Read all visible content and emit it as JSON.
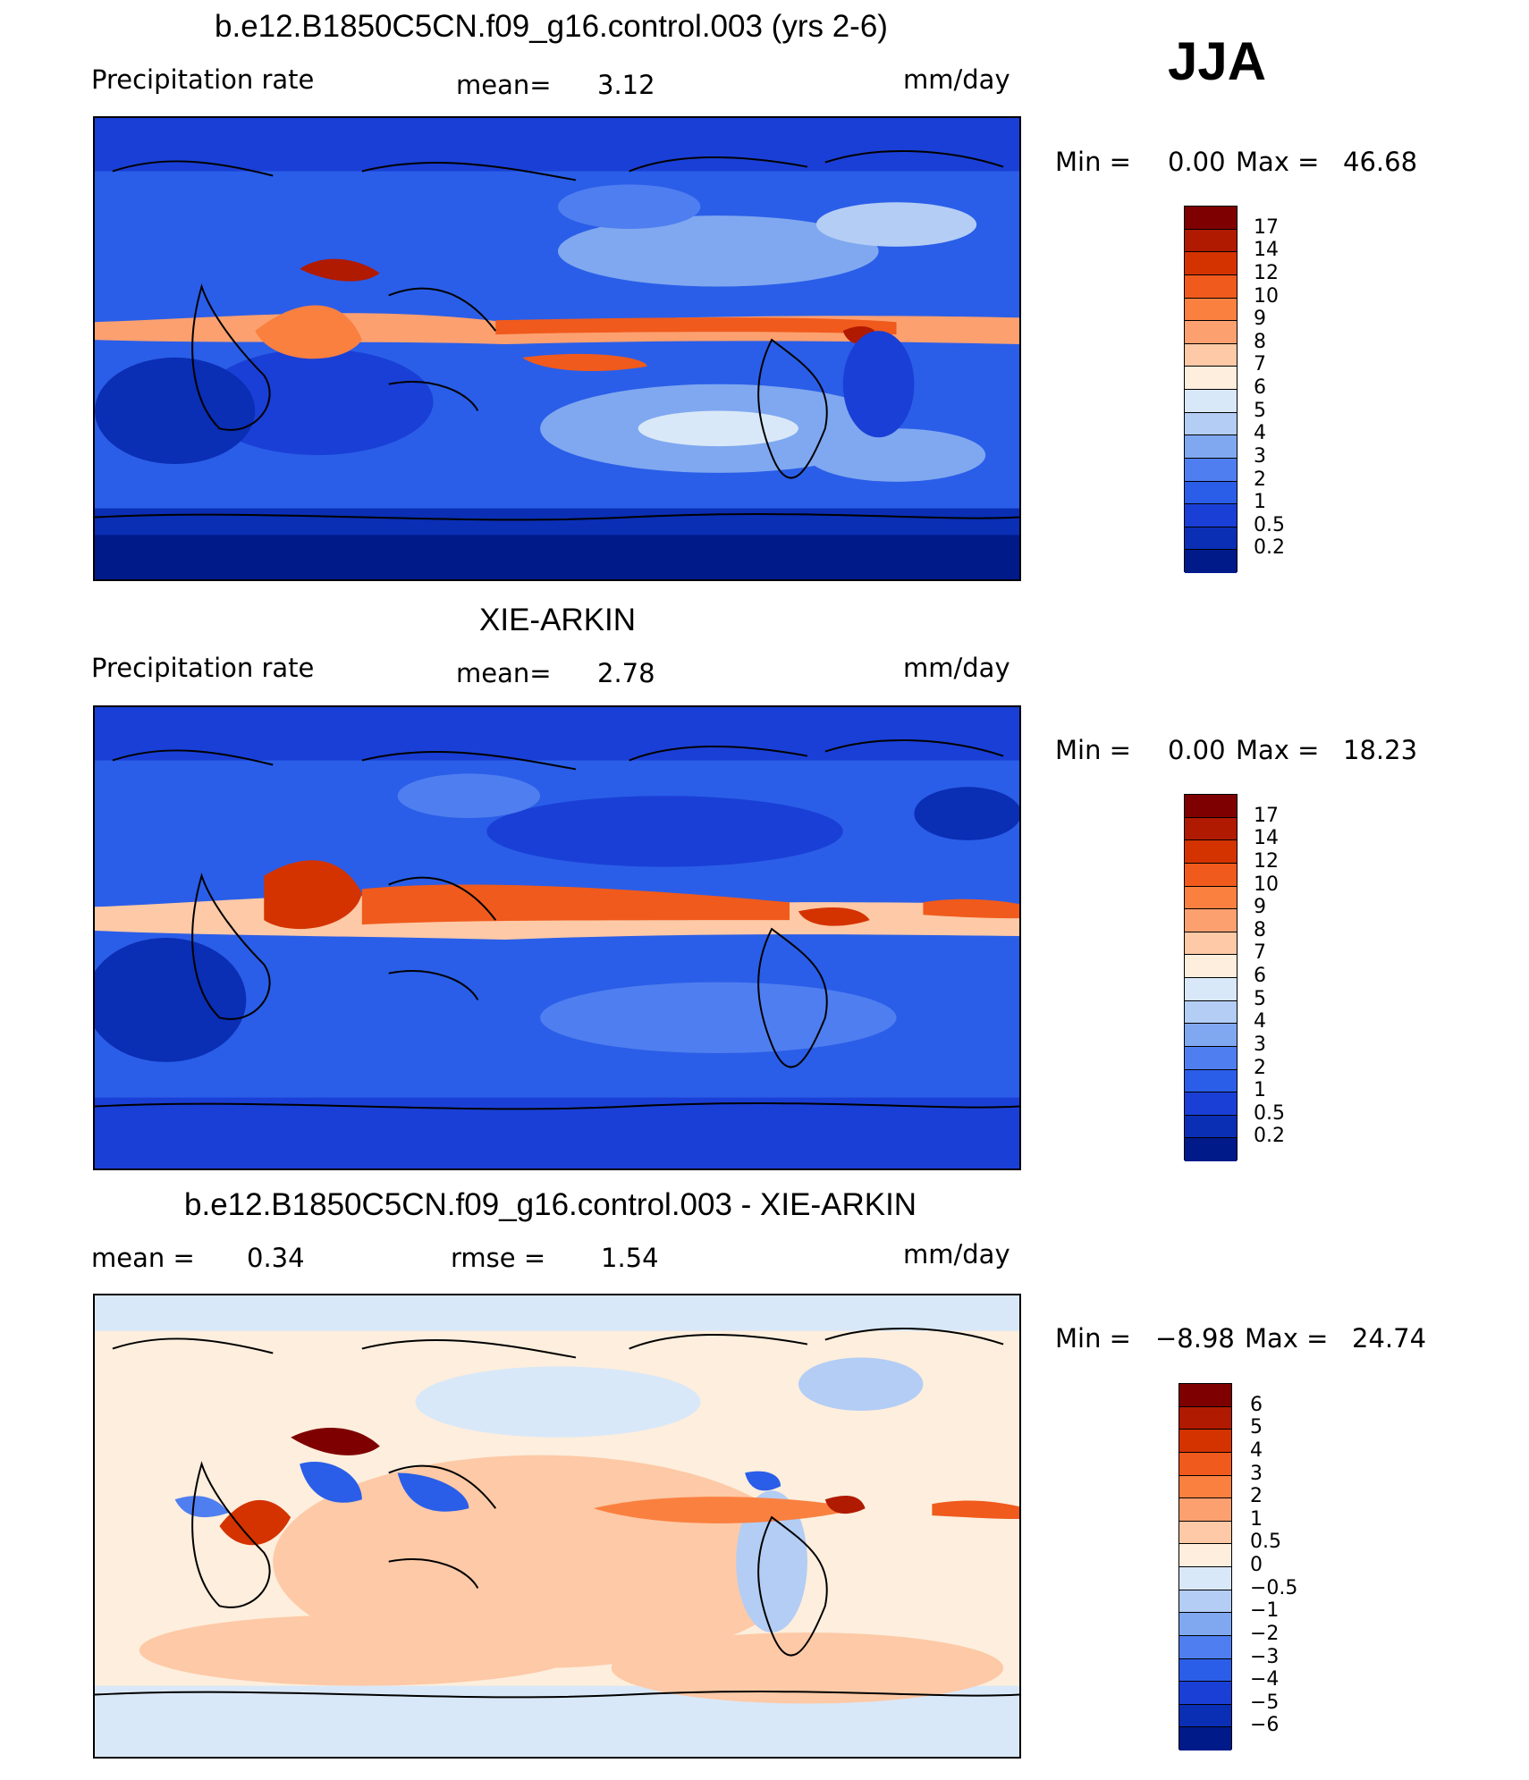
{
  "season": "JJA",
  "panels": [
    {
      "title": "b.e12.B1850C5CN.f09_g16.control.003 (yrs 2-6)",
      "left_label": "Precipitation  rate",
      "mean_label": "mean=",
      "mean_value": "3.12",
      "units": "mm/day",
      "min_label": "Min  =",
      "min_value": "0.00",
      "max_label": "Max  =",
      "max_value": "46.68",
      "kind": "model"
    },
    {
      "title": "XIE-ARKIN",
      "left_label": "Precipitation  rate",
      "mean_label": "mean=",
      "mean_value": "2.78",
      "units": "mm/day",
      "min_label": "Min  =",
      "min_value": "0.00",
      "max_label": "Max  =",
      "max_value": "18.23",
      "kind": "obs"
    },
    {
      "title": "b.e12.B1850C5CN.f09_g16.control.003 - XIE-ARKIN",
      "left_label": "mean  =",
      "left_value": "0.34",
      "rmse_label": "rmse  =",
      "rmse_value": "1.54",
      "units": "mm/day",
      "min_label": "Min  =",
      "min_value": "−8.98",
      "max_label": "Max  =",
      "max_value": "24.74",
      "kind": "diff"
    }
  ],
  "colorbars": {
    "precip": {
      "ticks": [
        "17",
        "14",
        "12",
        "10",
        "9",
        "8",
        "7",
        "6",
        "5",
        "4",
        "3",
        "2",
        "1",
        "0.5",
        "0.2"
      ],
      "colors": [
        "#7f0000",
        "#b01a00",
        "#d43300",
        "#f05a1c",
        "#fa8040",
        "#fca070",
        "#fdc9a6",
        "#fdeedd",
        "#d9e8f8",
        "#b3cdf5",
        "#7fa8f0",
        "#4f7ef0",
        "#2a5ee8",
        "#1a3fd6",
        "#0a2eb4",
        "#001a8a"
      ]
    },
    "diff": {
      "ticks": [
        "6",
        "5",
        "4",
        "3",
        "2",
        "1",
        "0.5",
        "0",
        "−0.5",
        "−1",
        "−2",
        "−3",
        "−4",
        "−5",
        "−6"
      ],
      "colors": [
        "#7f0000",
        "#b01a00",
        "#d43300",
        "#f05a1c",
        "#fa8040",
        "#fca070",
        "#fdc9a6",
        "#fdeedd",
        "#d9e8f8",
        "#b3cdf5",
        "#7fa8f0",
        "#4f7ef0",
        "#2a5ee8",
        "#1a3fd6",
        "#0a2eb4",
        "#001a8a"
      ]
    }
  }
}
